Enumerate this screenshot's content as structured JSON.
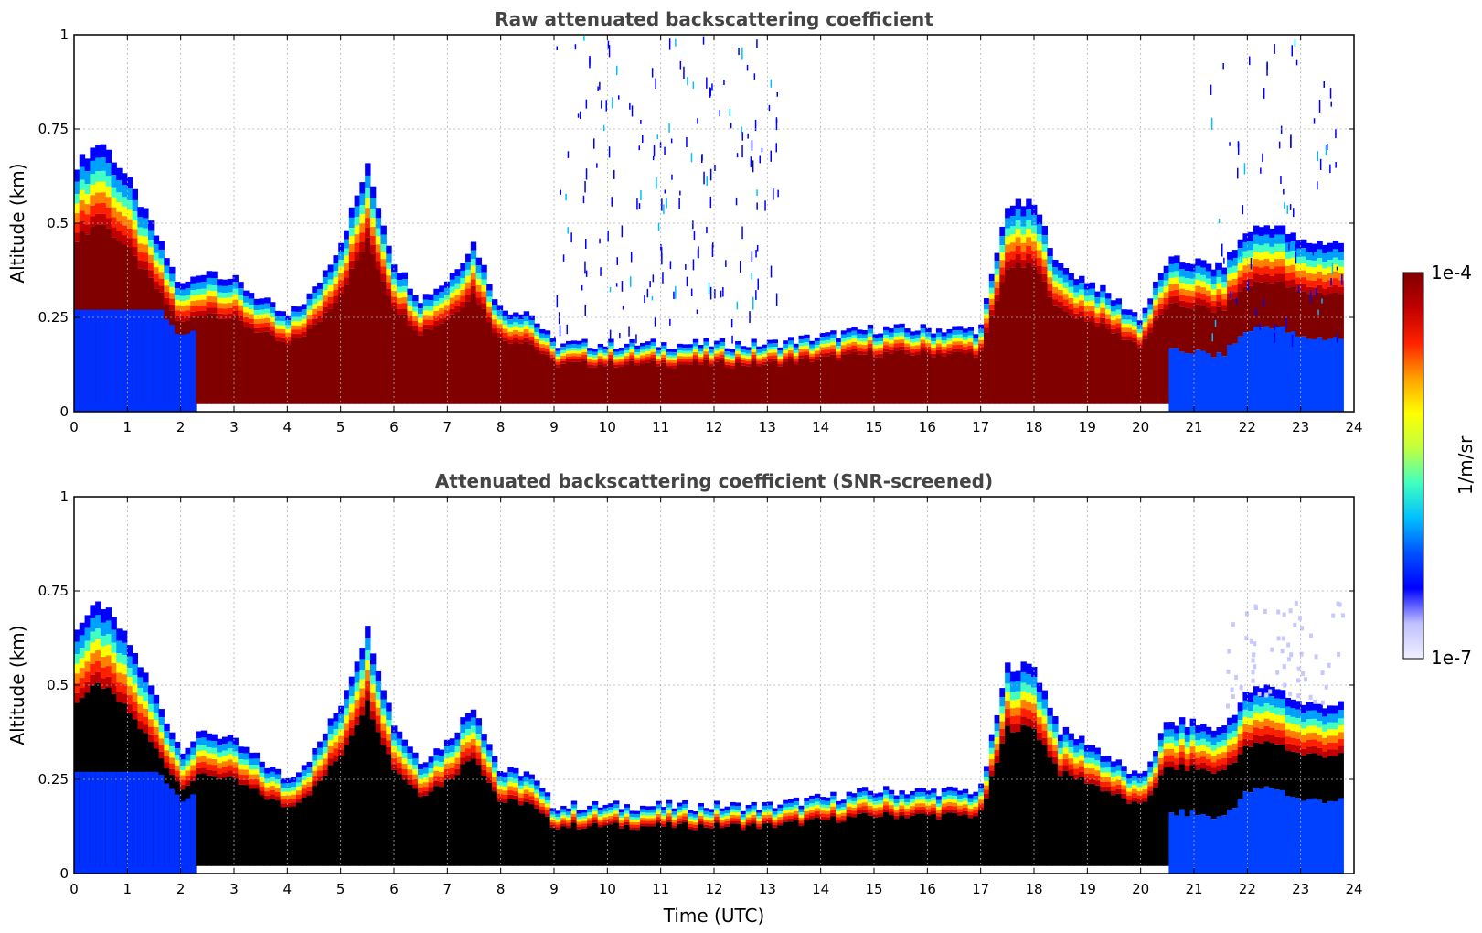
{
  "chart_data": [
    {
      "type": "heatmap",
      "title": "Raw attenuated backscattering coefficient",
      "ylabel": "Altitude (km)",
      "xlabel": "",
      "xlim": [
        0,
        24
      ],
      "ylim": [
        0,
        1
      ],
      "xticks": [
        "0",
        "1",
        "2",
        "3",
        "4",
        "5",
        "6",
        "7",
        "8",
        "9",
        "10",
        "11",
        "12",
        "13",
        "14",
        "15",
        "16",
        "17",
        "18",
        "19",
        "20",
        "21",
        "22",
        "23",
        "24"
      ],
      "yticks": [
        "0",
        "0.25",
        "0.5",
        "0.75",
        "1"
      ],
      "grid": true,
      "screened": false,
      "layer_top_km": {
        "time_utc": [
          0,
          0.5,
          1,
          1.5,
          2,
          2.5,
          3,
          3.5,
          4,
          4.5,
          5,
          5.5,
          6,
          6.5,
          7,
          7.5,
          8,
          8.5,
          9,
          10,
          11,
          12,
          13,
          14,
          15,
          16,
          17,
          17.5,
          18,
          18.5,
          19,
          19.5,
          20,
          20.5,
          21,
          21.5,
          22,
          22.5,
          23,
          23.8
        ],
        "values": [
          0.65,
          0.72,
          0.62,
          0.48,
          0.33,
          0.38,
          0.35,
          0.3,
          0.25,
          0.32,
          0.45,
          0.65,
          0.4,
          0.3,
          0.35,
          0.45,
          0.27,
          0.27,
          0.18,
          0.18,
          0.18,
          0.18,
          0.18,
          0.2,
          0.22,
          0.22,
          0.22,
          0.55,
          0.55,
          0.38,
          0.35,
          0.3,
          0.25,
          0.4,
          0.4,
          0.38,
          0.48,
          0.5,
          0.45,
          0.45
        ]
      }
    },
    {
      "type": "heatmap",
      "title": "Attenuated backscattering coefficient (SNR-screened)",
      "ylabel": "Altitude (km)",
      "xlabel": "Time (UTC)",
      "xlim": [
        0,
        24
      ],
      "ylim": [
        0,
        1
      ],
      "xticks": [
        "0",
        "1",
        "2",
        "3",
        "4",
        "5",
        "6",
        "7",
        "8",
        "9",
        "10",
        "11",
        "12",
        "13",
        "14",
        "15",
        "16",
        "17",
        "18",
        "19",
        "20",
        "21",
        "22",
        "23",
        "24"
      ],
      "yticks": [
        "0",
        "0.25",
        "0.5",
        "0.75",
        "1"
      ],
      "grid": true,
      "screened": true
    }
  ],
  "colorbar": {
    "max_label": "1e-4",
    "min_label": "1e-7",
    "unit_label": "1/m/sr",
    "scale": "log",
    "colormap": [
      "#f0f0ff",
      "#c0c0ff",
      "#0000ff",
      "#0050ff",
      "#00c0ff",
      "#40ffc0",
      "#c0ff40",
      "#ffff00",
      "#ffa000",
      "#ff2000",
      "#c00000",
      "#800000"
    ]
  }
}
